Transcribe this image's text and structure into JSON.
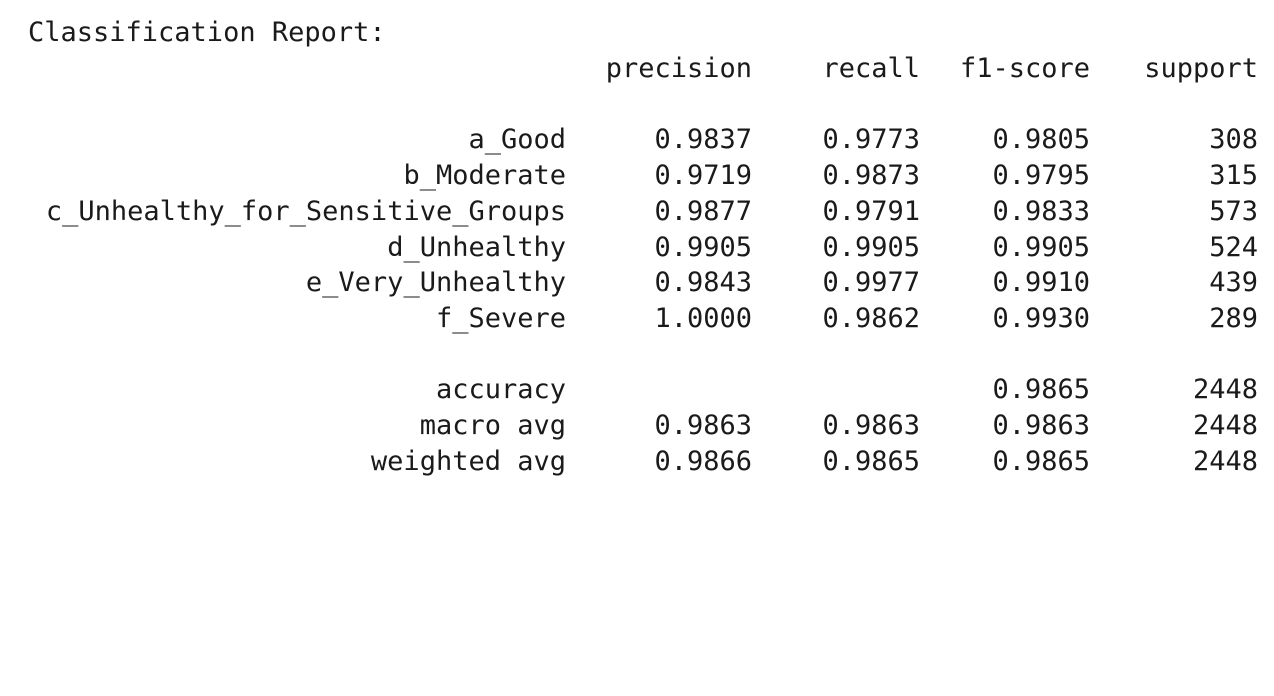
{
  "report": {
    "title": "Classification Report:",
    "headers": {
      "precision": "precision",
      "recall": "recall",
      "f1": "f1-score",
      "support": "support"
    },
    "classes": [
      {
        "label": "a_Good",
        "precision": "0.9837",
        "recall": "0.9773",
        "f1": "0.9805",
        "support": "308"
      },
      {
        "label": "b_Moderate",
        "precision": "0.9719",
        "recall": "0.9873",
        "f1": "0.9795",
        "support": "315"
      },
      {
        "label": "c_Unhealthy_for_Sensitive_Groups",
        "precision": "0.9877",
        "recall": "0.9791",
        "f1": "0.9833",
        "support": "573"
      },
      {
        "label": "d_Unhealthy",
        "precision": "0.9905",
        "recall": "0.9905",
        "f1": "0.9905",
        "support": "524"
      },
      {
        "label": "e_Very_Unhealthy",
        "precision": "0.9843",
        "recall": "0.9977",
        "f1": "0.9910",
        "support": "439"
      },
      {
        "label": "f_Severe",
        "precision": "1.0000",
        "recall": "0.9862",
        "f1": "0.9930",
        "support": "289"
      }
    ],
    "summary": [
      {
        "label": "accuracy",
        "precision": "",
        "recall": "",
        "f1": "0.9865",
        "support": "2448"
      },
      {
        "label": "macro avg",
        "precision": "0.9863",
        "recall": "0.9863",
        "f1": "0.9863",
        "support": "2448"
      },
      {
        "label": "weighted avg",
        "precision": "0.9866",
        "recall": "0.9865",
        "f1": "0.9865",
        "support": "2448"
      }
    ]
  }
}
